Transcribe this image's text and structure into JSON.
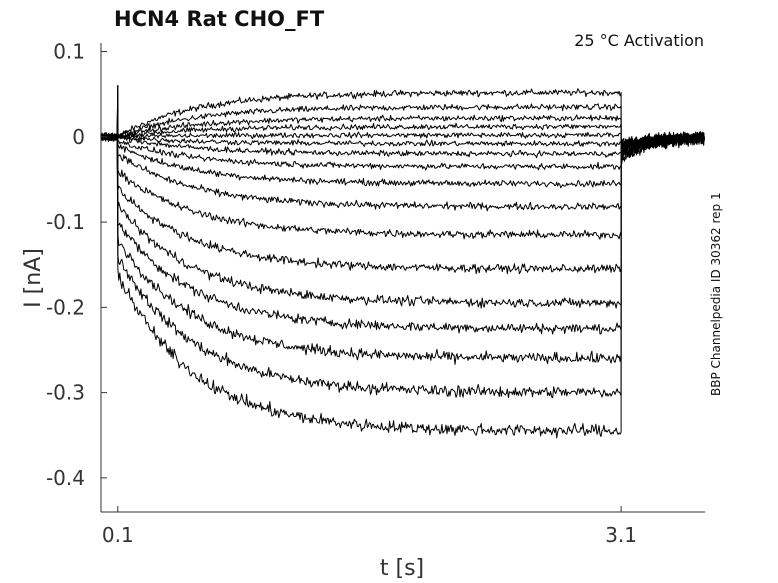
{
  "chart_data": {
    "type": "line",
    "title": "HCN4  Rat  CHO_FT",
    "annotation": "25 °C  Activation",
    "side_label": "BBP Channelpedia ID 30362 rep 1",
    "xlabel": "t [s]",
    "ylabel": "I [nA]",
    "xlim": [
      0.0,
      3.6
    ],
    "ylim": [
      -0.44,
      0.11
    ],
    "xticks": [
      0.1,
      3.1
    ],
    "xtick_labels": [
      "0.1",
      "3.1"
    ],
    "yticks": [
      0.1,
      0,
      -0.1,
      -0.2,
      -0.3,
      -0.4
    ],
    "ytick_labels": [
      "0.1",
      "0",
      "-0.1",
      "-0.2",
      "-0.3",
      "-0.4"
    ],
    "grid": false,
    "pulse_start": 0.1,
    "pulse_end": 3.1,
    "series": [
      {
        "initial": 0.0,
        "final": 0.052
      },
      {
        "initial": 0.0,
        "final": 0.035
      },
      {
        "initial": 0.0,
        "final": 0.022
      },
      {
        "initial": 0.0,
        "final": 0.012
      },
      {
        "initial": 0.0,
        "final": 0.002
      },
      {
        "initial": 0.0,
        "final": -0.008
      },
      {
        "initial": 0.0,
        "final": -0.02
      },
      {
        "initial": -0.005,
        "final": -0.035
      },
      {
        "initial": -0.01,
        "final": -0.055
      },
      {
        "initial": -0.02,
        "final": -0.082
      },
      {
        "initial": -0.04,
        "final": -0.115
      },
      {
        "initial": -0.06,
        "final": -0.155
      },
      {
        "initial": -0.08,
        "final": -0.195
      },
      {
        "initial": -0.1,
        "final": -0.225
      },
      {
        "initial": -0.12,
        "final": -0.26
      },
      {
        "initial": -0.14,
        "final": -0.3
      },
      {
        "initial": -0.16,
        "final": -0.345
      }
    ]
  }
}
